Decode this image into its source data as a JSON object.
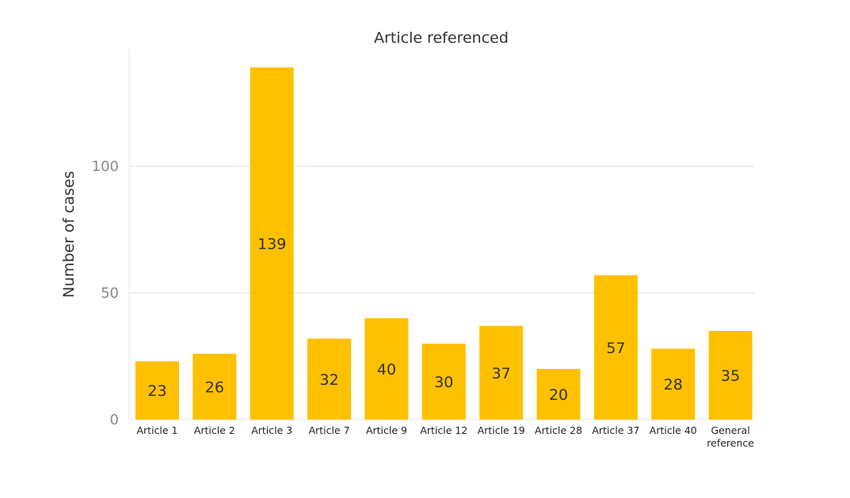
{
  "chart_data": {
    "type": "bar",
    "title": "Article referenced",
    "xlabel": "",
    "ylabel": "Number of cases",
    "ylim": [
      0,
      145
    ],
    "yticks": [
      0,
      50,
      100
    ],
    "grid": true,
    "color": "#FFC000",
    "categories": [
      "Article 1",
      "Article 2",
      "Article 3",
      "Article 7",
      "Article 9",
      "Article 12",
      "Article 19",
      "Article 28",
      "Article 37",
      "Article 40",
      "General reference"
    ],
    "values": [
      23,
      26,
      139,
      32,
      40,
      30,
      37,
      20,
      57,
      28,
      35
    ]
  }
}
